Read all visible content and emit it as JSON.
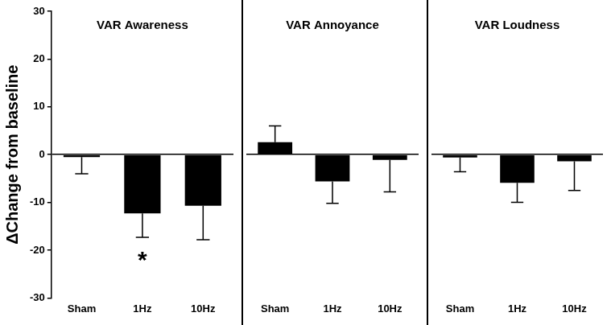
{
  "chart_data": [
    {
      "type": "bar",
      "title": "VAR Awareness",
      "y_label": "ΔChange from baseline",
      "categories": [
        "Sham",
        "1Hz",
        "10Hz"
      ],
      "values": [
        -0.5,
        -12.3,
        -10.7
      ],
      "errors": [
        3.5,
        5.0,
        7.1
      ],
      "color": "#000000",
      "ylim": [
        -30,
        30
      ],
      "yticks": [
        -30,
        -20,
        -10,
        0,
        10,
        20,
        30
      ],
      "grid": false,
      "annotations": [
        {
          "category": "1Hz",
          "text": "*"
        }
      ]
    },
    {
      "type": "bar",
      "title": "VAR Annoyance",
      "categories": [
        "Sham",
        "1Hz",
        "10Hz"
      ],
      "values": [
        2.6,
        -5.6,
        -1.1
      ],
      "errors": [
        3.4,
        4.6,
        6.7
      ],
      "color": "#000000",
      "ylim": [
        -30,
        30
      ],
      "yticks": [
        -30,
        -20,
        -10,
        0,
        10,
        20,
        30
      ],
      "grid": false,
      "tick_labels": "x"
    },
    {
      "type": "bar",
      "title": "VAR Loudness",
      "categories": [
        "Sham",
        "1Hz",
        "10Hz"
      ],
      "values": [
        -0.6,
        -5.9,
        -1.4
      ],
      "errors": [
        3.0,
        4.1,
        6.1
      ],
      "color": "#000000",
      "ylim": [
        -30,
        30
      ],
      "yticks": [
        -30,
        -20,
        -10,
        0,
        10,
        20,
        30
      ],
      "grid": false,
      "tick_labels": "x"
    }
  ]
}
